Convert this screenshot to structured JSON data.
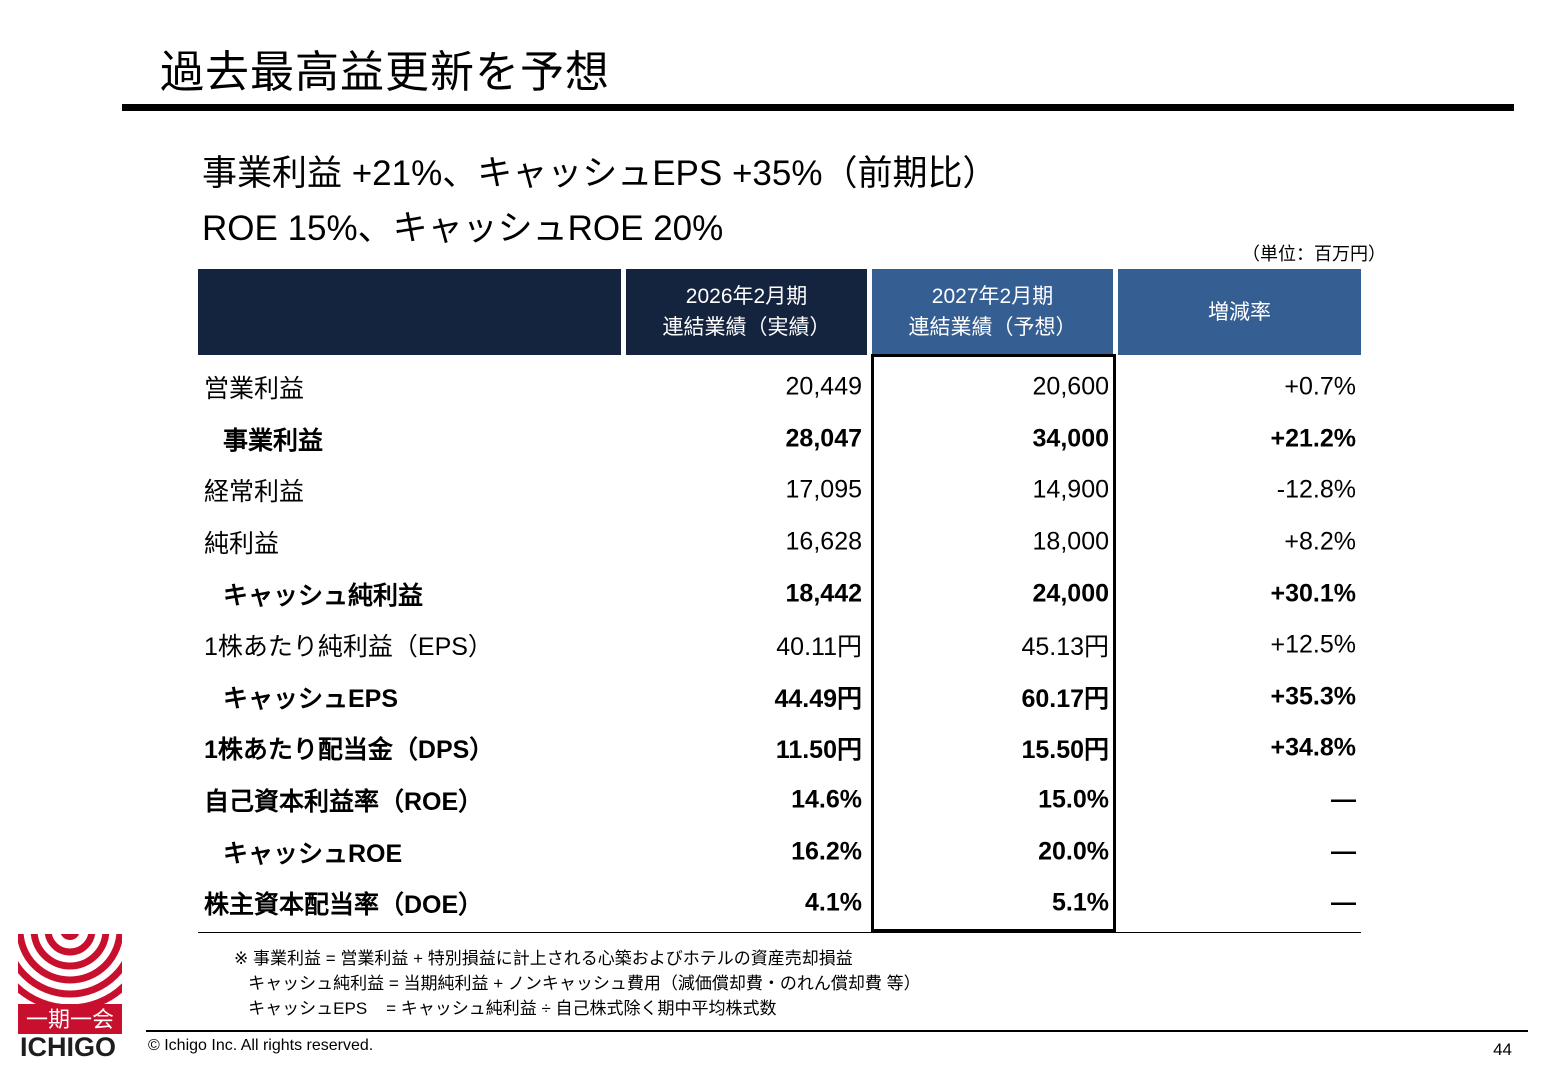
{
  "title": "過去最高益更新を予想",
  "headline1": "事業利益 +21%、キャッシュEPS +35%（前期比）",
  "headline2": "ROE 15%、キャッシュROE 20%",
  "unit_note": "（単位：百万円）",
  "table": {
    "headers": {
      "col1_line1": "2026年2月期",
      "col1_line2": "連結業績（実績）",
      "col2_line1": "2027年2月期",
      "col2_line2": "連結業績（予想）",
      "col3": "増減率"
    },
    "rows": [
      {
        "label": "営業利益",
        "fy2026": "20,449",
        "fy2027": "20,600",
        "change": "+0.7%"
      },
      {
        "label": "事業利益",
        "fy2026": "28,047",
        "fy2027": "34,000",
        "change": "+21.2%"
      },
      {
        "label": "経常利益",
        "fy2026": "17,095",
        "fy2027": "14,900",
        "change": "-12.8%"
      },
      {
        "label": "純利益",
        "fy2026": "16,628",
        "fy2027": "18,000",
        "change": "+8.2%"
      },
      {
        "label": "キャッシュ純利益",
        "fy2026": "18,442",
        "fy2027": "24,000",
        "change": "+30.1%"
      },
      {
        "label": "1株あたり純利益（EPS）",
        "fy2026": "40.11円",
        "fy2027": "45.13円",
        "change": "+12.5%"
      },
      {
        "label": "キャッシュEPS",
        "fy2026": "44.49円",
        "fy2027": "60.17円",
        "change": "+35.3%"
      },
      {
        "label": "1株あたり配当金（DPS）",
        "fy2026": "11.50円",
        "fy2027": "15.50円",
        "change": "+34.8%"
      },
      {
        "label": "自己資本利益率（ROE）",
        "fy2026": "14.6%",
        "fy2027": "15.0%",
        "change": "—"
      },
      {
        "label": "キャッシュROE",
        "fy2026": "16.2%",
        "fy2027": "20.0%",
        "change": "—"
      },
      {
        "label": "株主資本配当率（DOE）",
        "fy2026": "4.1%",
        "fy2027": "5.1%",
        "change": "—"
      }
    ]
  },
  "notes": {
    "line1": "※ 事業利益 = 営業利益 + 特別損益に計上される心築およびホテルの資産売却損益",
    "line2": "   キャッシュ純利益 = 当期純利益 + ノンキャッシュ費用（減価償却費・のれん償却費 等）",
    "line3": "   キャッシュEPS    = キャッシュ純利益 ÷ 自己株式除く期中平均株式数"
  },
  "footer": {
    "copyright": "© Ichigo Inc. All rights reserved.",
    "page_number": "44"
  },
  "logo": {
    "kanji": "一期一会",
    "text": "ICHIGO",
    "color": "#c8102e"
  }
}
